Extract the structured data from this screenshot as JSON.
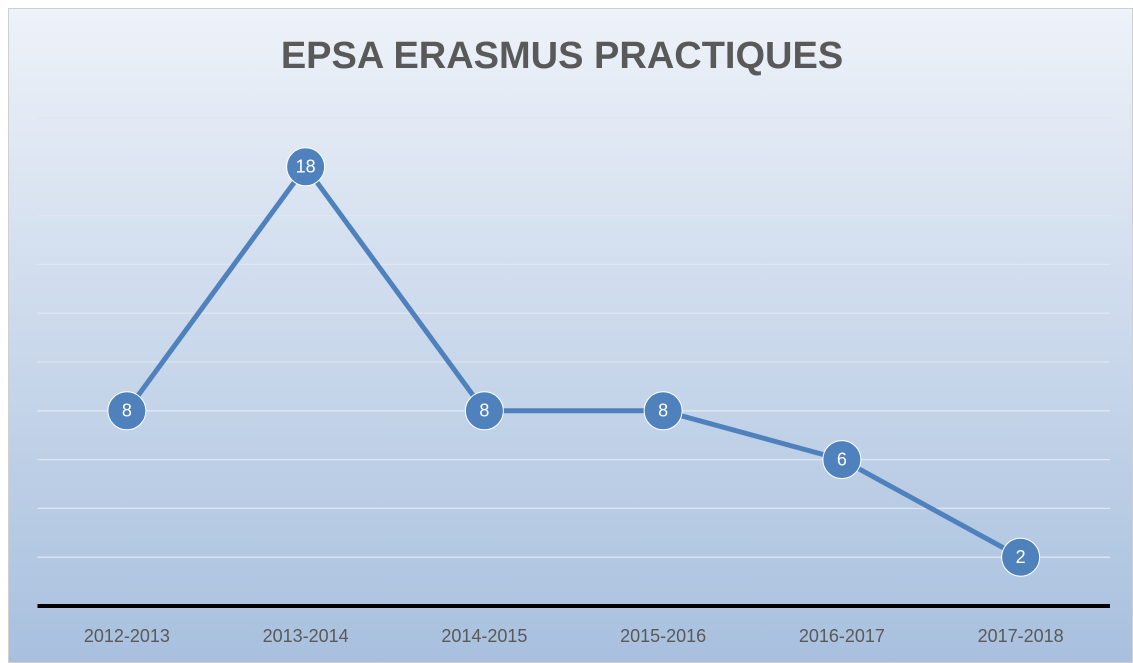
{
  "chart_data": {
    "type": "line",
    "title": "EPSA ERASMUS PRACTIQUES",
    "categories": [
      "2012-2013",
      "2013-2014",
      "2014-2015",
      "2015-2016",
      "2016-2017",
      "2017-2018"
    ],
    "values": [
      8,
      18,
      8,
      8,
      6,
      2
    ],
    "color": "#4f81bd",
    "ylim": [
      0,
      20
    ],
    "yticks": [
      0,
      2,
      4,
      6,
      8,
      10,
      12,
      14,
      16,
      18,
      20
    ],
    "grid": true,
    "show_ytick_labels": false,
    "data_labels": true
  }
}
